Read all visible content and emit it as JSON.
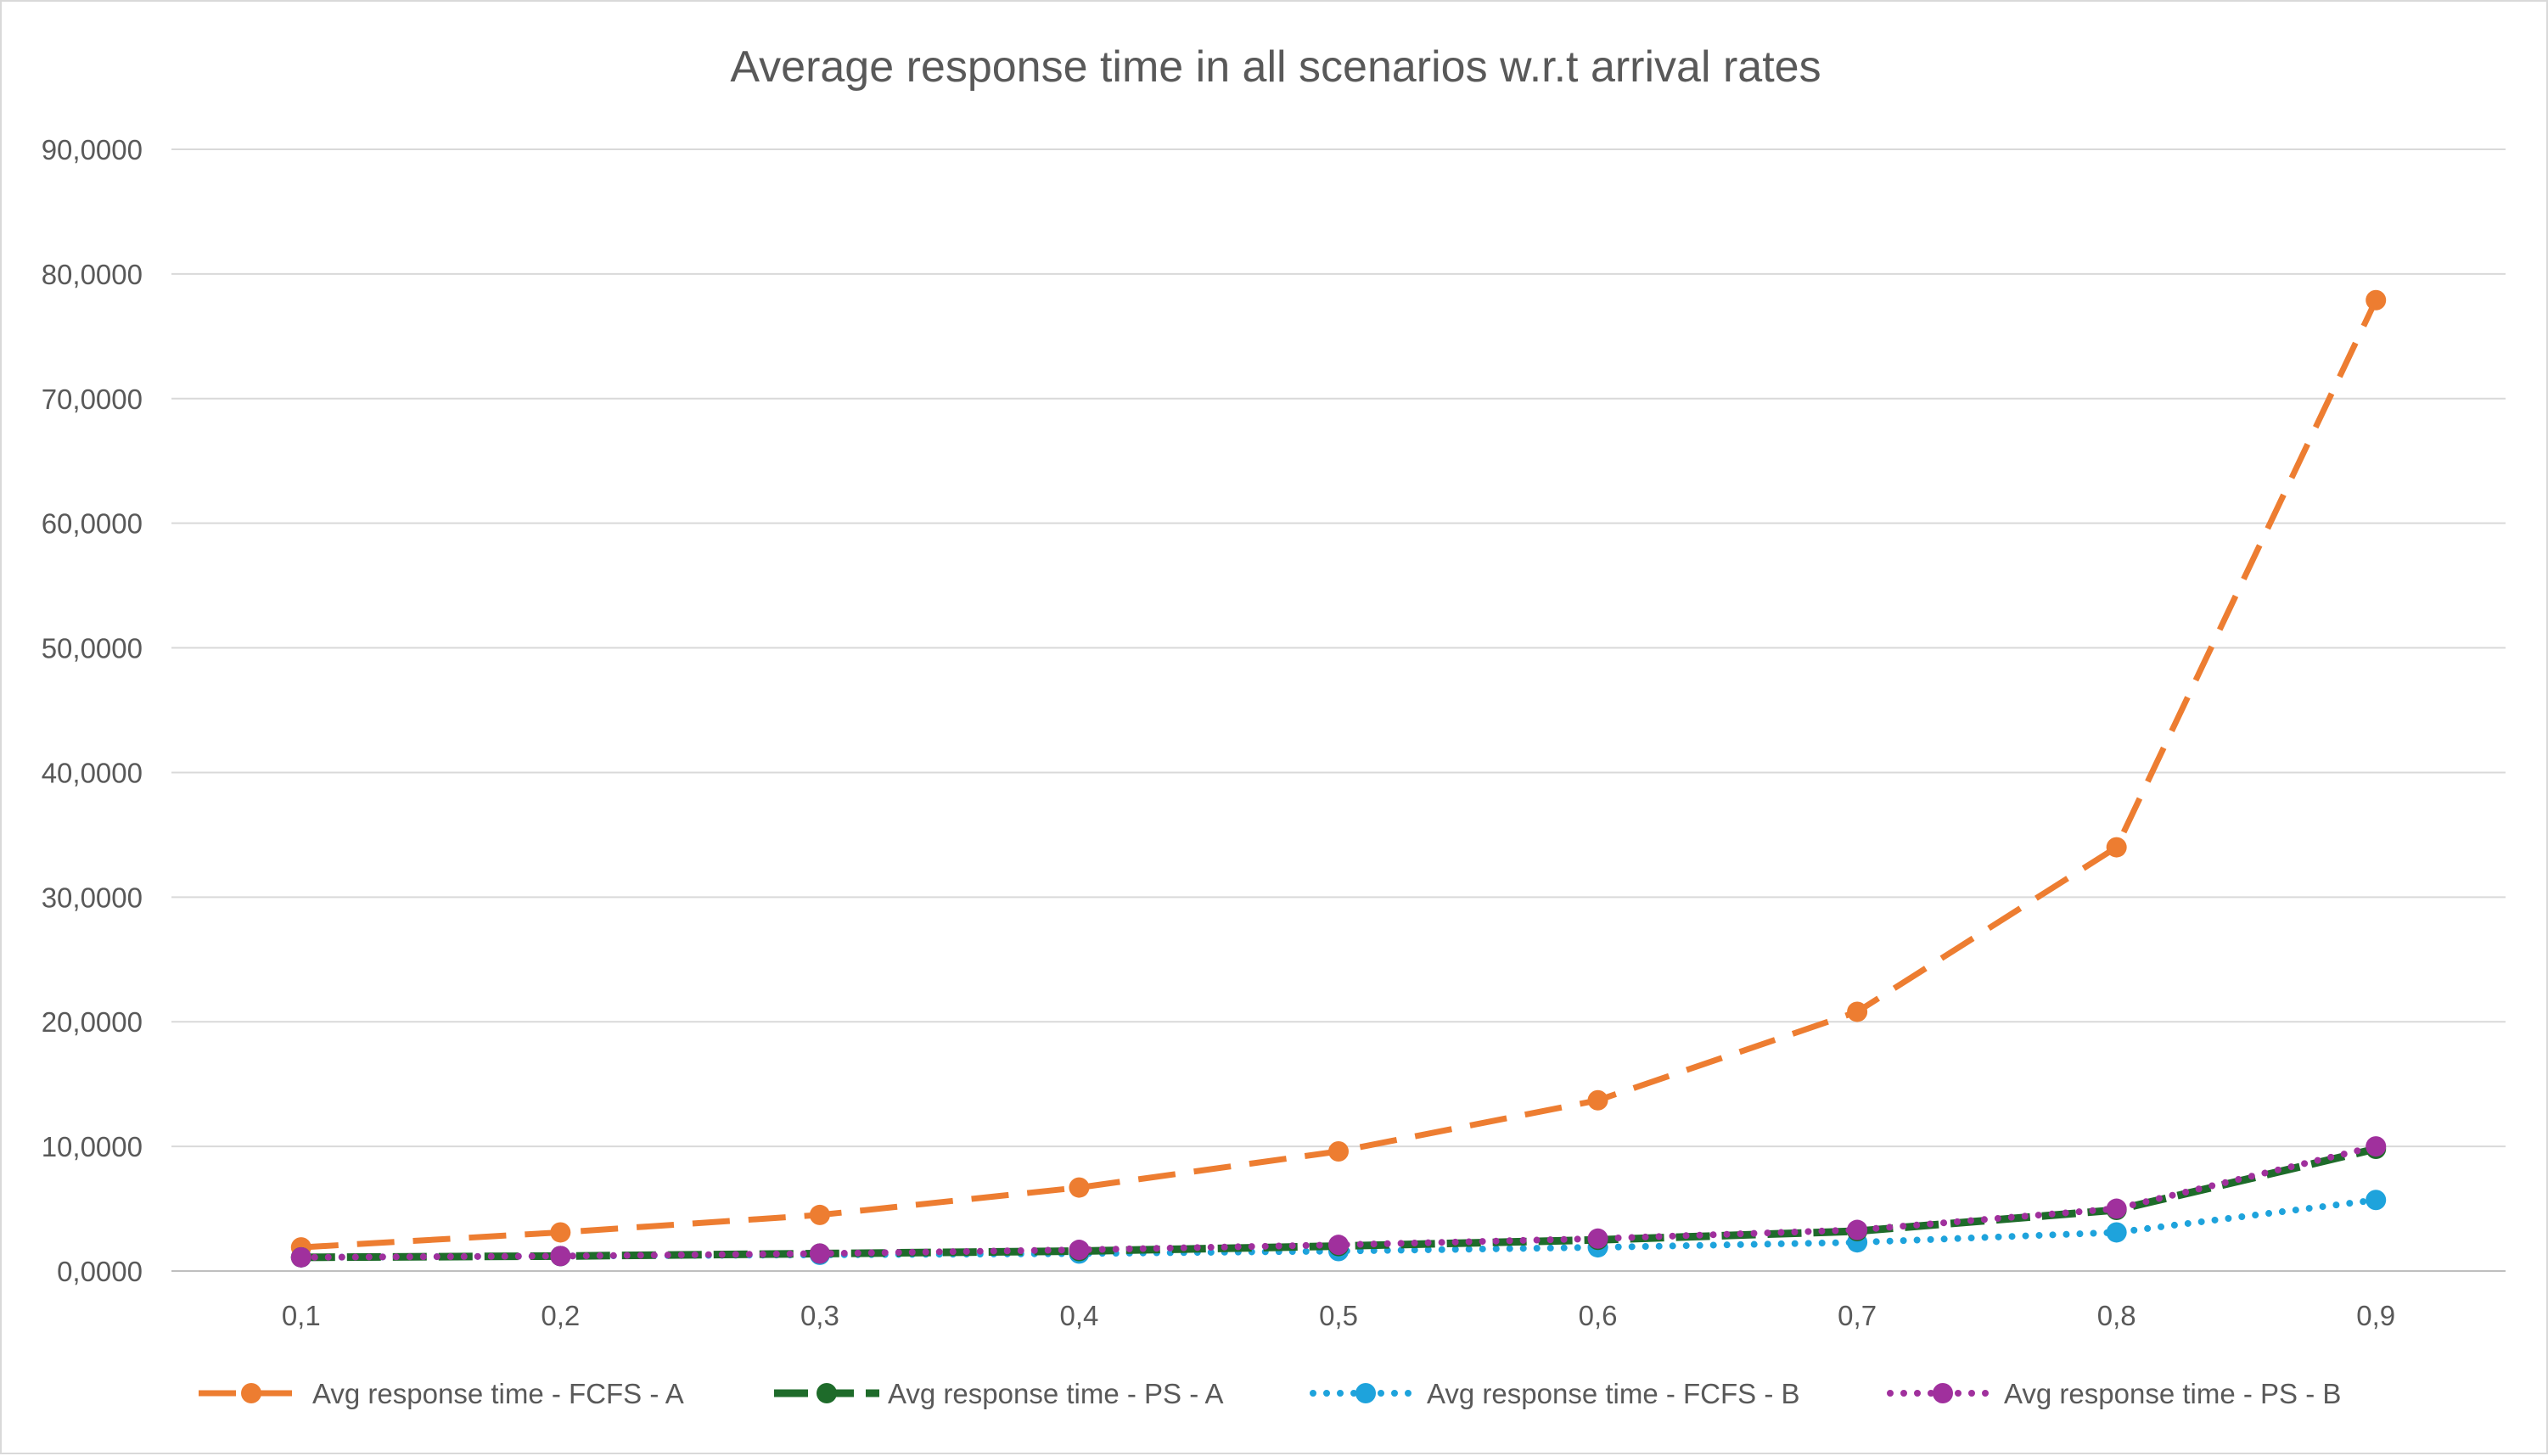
{
  "chart_data": {
    "type": "line",
    "title": "Average response time in all scenarios w.r.t arrival rates",
    "xlabel": "",
    "ylabel": "",
    "categories": [
      "0,1",
      "0,2",
      "0,3",
      "0,4",
      "0,5",
      "0,6",
      "0,7",
      "0,8",
      "0,9"
    ],
    "ylim": [
      0,
      90
    ],
    "yticks": [
      0,
      10,
      20,
      30,
      40,
      50,
      60,
      70,
      80,
      90
    ],
    "ytick_labels": [
      "0,0000",
      "10,0000",
      "20,0000",
      "30,0000",
      "40,0000",
      "50,0000",
      "60,0000",
      "70,0000",
      "80,0000",
      "90,0000"
    ],
    "grid": true,
    "legend_position": "bottom",
    "series": [
      {
        "name": "Avg response time - FCFS - A",
        "color": "#ed7d31",
        "line_style": "dashed",
        "values": [
          1.9,
          3.1,
          4.5,
          6.7,
          9.6,
          13.7,
          20.8,
          34.0,
          77.9
        ]
      },
      {
        "name": "Avg response time - PS - A",
        "color": "#1e6b2a",
        "line_style": "long-dash",
        "values": [
          1.1,
          1.2,
          1.4,
          1.6,
          2.0,
          2.5,
          3.2,
          4.9,
          9.8
        ]
      },
      {
        "name": "Avg response time - FCFS - B",
        "color": "#1ea3dc",
        "line_style": "dotted",
        "values": [
          1.1,
          1.2,
          1.3,
          1.4,
          1.6,
          1.9,
          2.3,
          3.1,
          5.7
        ]
      },
      {
        "name": "Avg response time - PS - B",
        "color": "#a0309d",
        "line_style": "dotted",
        "values": [
          1.1,
          1.2,
          1.4,
          1.7,
          2.1,
          2.6,
          3.3,
          5.0,
          10.0
        ]
      }
    ]
  }
}
